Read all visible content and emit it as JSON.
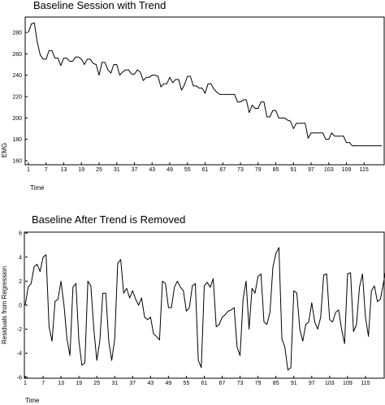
{
  "chart_data": [
    {
      "type": "line",
      "title": "Baseline Session with Trend",
      "xlabel": "Time",
      "ylabel": "EMG",
      "xlim": [
        1,
        121
      ],
      "ylim": [
        155,
        300
      ],
      "x_ticks": [
        "1",
        "7",
        "13",
        "19",
        "25",
        "31",
        "37",
        "43",
        "49",
        "55",
        "61",
        "67",
        "73",
        "79",
        "85",
        "91",
        "97",
        "103",
        "109",
        "115"
      ],
      "y_ticks": [
        "160",
        "180",
        "200",
        "220",
        "240",
        "260",
        "280"
      ],
      "series": [
        {
          "values": [
            280,
            288,
            289,
            271,
            259,
            255,
            255,
            263,
            263,
            256,
            256,
            249,
            256,
            256,
            253,
            253,
            257,
            257,
            255,
            250,
            255,
            255,
            251,
            250,
            240,
            252,
            252,
            245,
            242,
            250,
            250,
            240,
            243,
            245,
            245,
            241,
            241,
            245,
            243,
            235,
            238,
            238,
            240,
            240,
            239,
            229,
            232,
            232,
            238,
            233,
            236,
            236,
            226,
            231,
            239,
            239,
            230,
            230,
            228,
            228,
            223,
            232,
            232,
            227,
            224,
            222,
            222,
            222,
            222,
            222,
            222,
            215,
            215,
            217,
            217,
            205,
            212,
            209,
            209,
            215,
            215,
            201,
            201,
            207,
            207,
            200,
            200,
            200,
            198,
            197,
            190,
            195,
            195,
            195,
            195,
            181,
            186,
            186,
            186,
            186,
            186,
            180,
            180,
            186,
            183,
            183,
            183,
            183,
            177,
            177,
            174,
            174,
            174,
            174,
            174,
            174,
            174,
            174,
            174,
            174,
            174
          ]
        }
      ]
    },
    {
      "type": "line",
      "title": "Baseline After Trend is Removed",
      "xlabel": "Time",
      "ylabel": "Residuals from Regression",
      "xlim": [
        1,
        121
      ],
      "ylim": [
        -6,
        6
      ],
      "x_ticks": [
        "1",
        "7",
        "13",
        "19",
        "25",
        "31",
        "37",
        "43",
        "49",
        "55",
        "61",
        "67",
        "73",
        "79",
        "85",
        "91",
        "97",
        "103",
        "109",
        "115"
      ],
      "y_ticks": [
        "-6",
        "-4",
        "-2",
        "0",
        "2",
        "4",
        "6"
      ],
      "series": [
        {
          "values": [
            0.0,
            1.5,
            1.8,
            3.2,
            3.4,
            2.8,
            4.0,
            4.2,
            -1.8,
            -3.0,
            0.3,
            0.5,
            2.0,
            0.0,
            -2.8,
            -4.2,
            1.5,
            1.8,
            -3.0,
            -5.0,
            -4.8,
            2.0,
            1.6,
            -2.0,
            -4.6,
            -3.0,
            1.0,
            1.0,
            -3.0,
            -4.6,
            -2.8,
            3.5,
            3.8,
            1.0,
            1.4,
            0.6,
            1.2,
            0.5,
            0.0,
            0.6,
            -1.0,
            -1.2,
            -1.0,
            -2.4,
            -2.6,
            -2.9,
            2.0,
            1.8,
            -0.2,
            -0.2,
            1.5,
            2.0,
            1.5,
            1.2,
            -0.5,
            -0.2,
            1.6,
            1.8,
            -4.6,
            -5.2,
            1.6,
            1.9,
            1.5,
            2.2,
            -1.8,
            -1.6,
            -1.0,
            -0.8,
            -0.5,
            -0.4,
            -0.2,
            -3.5,
            -4.2,
            0.5,
            2.0,
            -2.0,
            1.4,
            1.0,
            2.4,
            2.6,
            -1.4,
            -1.6,
            -0.6,
            3.2,
            4.3,
            4.8,
            -2.8,
            -3.5,
            -5.4,
            -5.2,
            1.2,
            1.0,
            -2.0,
            -3.0,
            -1.6,
            -1.4,
            0.2,
            -1.4,
            -2.0,
            -1.0,
            2.5,
            2.6,
            -1.2,
            -1.4,
            -0.6,
            -0.4,
            -2.0,
            -3.2,
            2.6,
            2.7,
            -2.2,
            -1.6,
            1.5,
            2.6,
            -1.0,
            -2.6,
            1.2,
            1.6,
            0.3,
            0.5,
            1.8,
            3.2,
            3.4
          ]
        }
      ]
    }
  ]
}
